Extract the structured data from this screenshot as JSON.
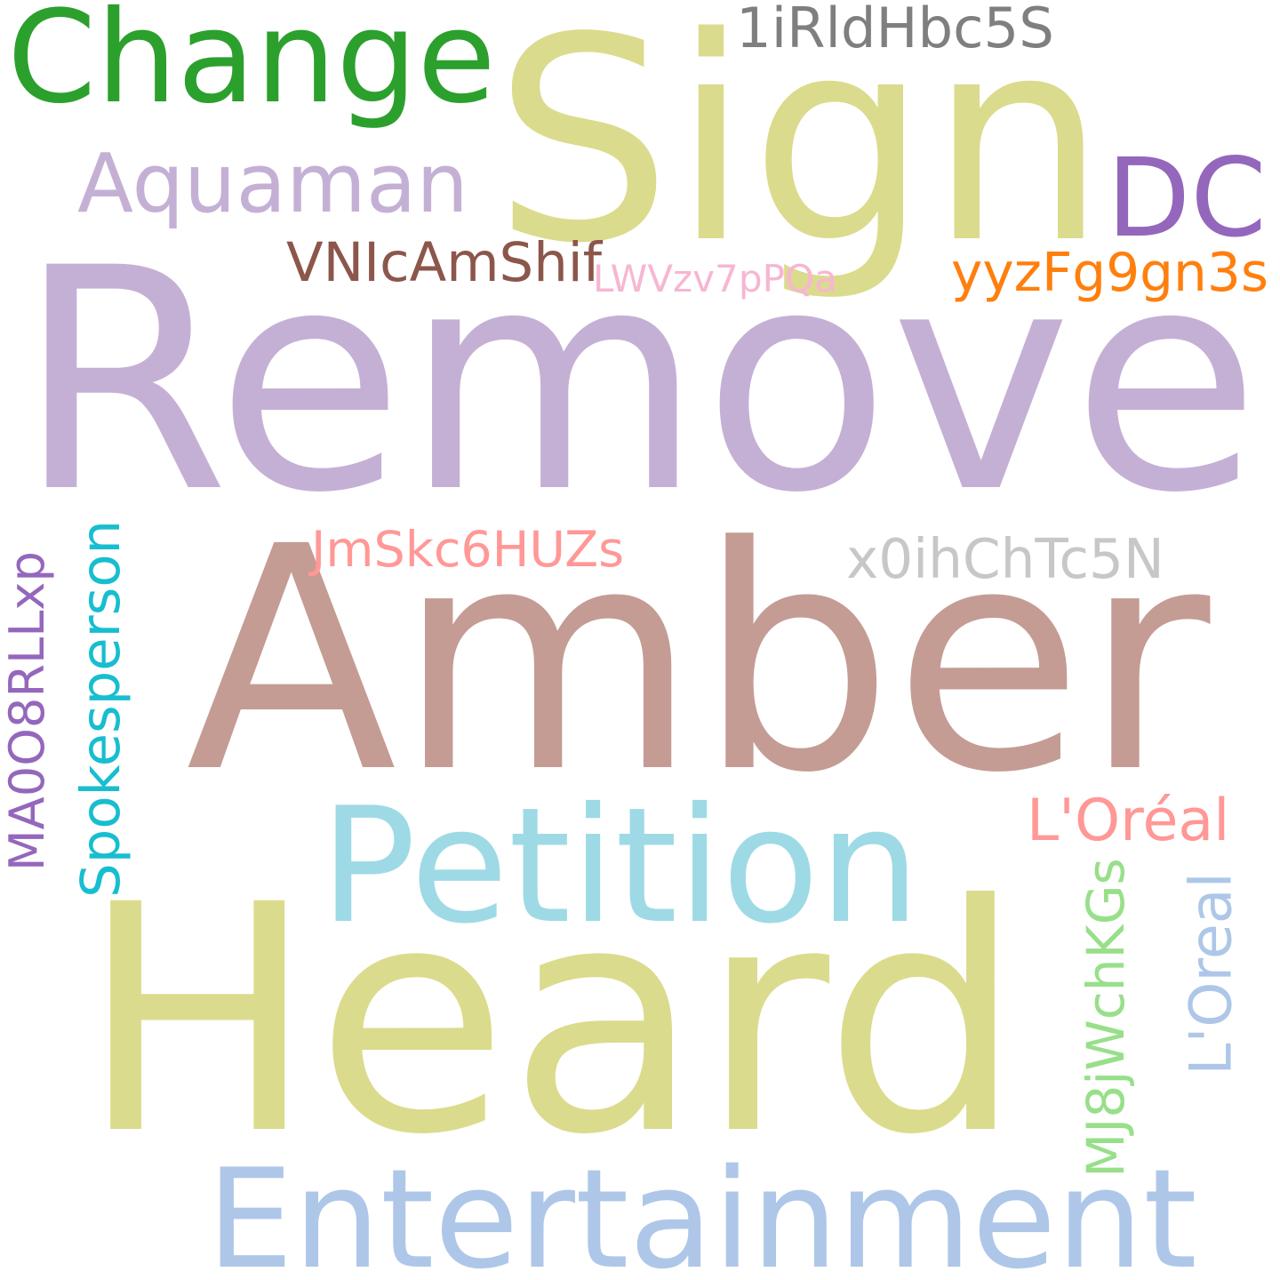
{
  "words": [
    {
      "key": "remove",
      "text": "Remove",
      "color": "#c5b0d5",
      "orientation": "horizontal"
    },
    {
      "key": "amber",
      "text": "Amber",
      "color": "#c49c94",
      "orientation": "horizontal"
    },
    {
      "key": "heard",
      "text": "Heard",
      "color": "#dbdb8d",
      "orientation": "horizontal"
    },
    {
      "key": "sign",
      "text": "Sign",
      "color": "#dbdb8d",
      "orientation": "horizontal"
    },
    {
      "key": "petition",
      "text": "Petition",
      "color": "#9edae5",
      "orientation": "horizontal"
    },
    {
      "key": "entertainment",
      "text": "Entertainment",
      "color": "#aec7e8",
      "orientation": "horizontal"
    },
    {
      "key": "change",
      "text": "Change",
      "color": "#2ca02c",
      "orientation": "horizontal"
    },
    {
      "key": "dc",
      "text": "DC",
      "color": "#9467bd",
      "orientation": "horizontal"
    },
    {
      "key": "aquaman",
      "text": "Aquaman",
      "color": "#c5b0d5",
      "orientation": "horizontal"
    },
    {
      "key": "irld",
      "text": "1iRldHbc5S",
      "color": "#7f7f7f",
      "orientation": "horizontal"
    },
    {
      "key": "vnic",
      "text": "VNIcAmShif",
      "color": "#8c564b",
      "orientation": "horizontal"
    },
    {
      "key": "lwvz",
      "text": "LWVzv7pPQa",
      "color": "#f7b6d2",
      "orientation": "horizontal"
    },
    {
      "key": "yyzf",
      "text": "yyzFg9gn3s",
      "color": "#ff7f0e",
      "orientation": "horizontal"
    },
    {
      "key": "jmsk",
      "text": "JmSkc6HUZs",
      "color": "#ff9896",
      "orientation": "horizontal"
    },
    {
      "key": "x0ih",
      "text": "x0ihChTc5N",
      "color": "#c7c7c7",
      "orientation": "horizontal"
    },
    {
      "key": "loreal1",
      "text": "L'Oréal",
      "color": "#ff9896",
      "orientation": "horizontal"
    },
    {
      "key": "loreal2",
      "text": "L'Oreal",
      "color": "#aec7e8",
      "orientation": "vertical"
    },
    {
      "key": "mj8j",
      "text": "MJ8jWchKGs",
      "color": "#98df8a",
      "orientation": "vertical"
    },
    {
      "key": "spokes",
      "text": "Spokesperson",
      "color": "#17becf",
      "orientation": "vertical"
    },
    {
      "key": "ma00",
      "text": "MA0O8RLLxp",
      "color": "#9467bd",
      "orientation": "vertical"
    }
  ]
}
